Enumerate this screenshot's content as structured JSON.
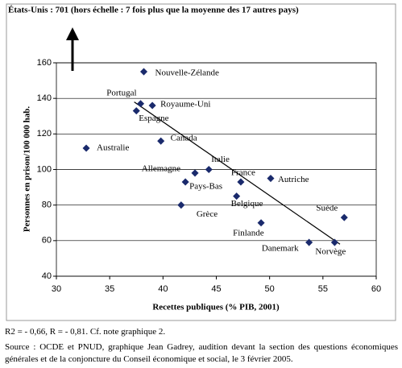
{
  "chart_data": {
    "type": "scatter",
    "title": "États-Unis : 701 (hors échelle : 7 fois plus que la moyenne des 17 autres pays)",
    "x_label": "Recettes publiques (% PIB, 2001)",
    "y_label": "Personnes en prison/100 000 hab.",
    "point_labels": [
      "Nouvelle-Zélande",
      "Portugal",
      "Royaume-Uni",
      "Espagne",
      "Canada",
      "Australie",
      "Italie",
      "Allemagne",
      "Pays-Bas",
      "France",
      "Autriche",
      "Belgique",
      "Grèce",
      "Finlande",
      "Suède",
      "Danemark",
      "Norvège"
    ],
    "x": [
      38.2,
      37.9,
      39.0,
      37.5,
      39.8,
      32.8,
      44.3,
      43.0,
      42.1,
      47.3,
      50.1,
      46.9,
      41.7,
      49.2,
      57.0,
      53.7,
      56.1
    ],
    "values": [
      155,
      137,
      136,
      133,
      116,
      112,
      100,
      98,
      93,
      93,
      95,
      85,
      80,
      70,
      73,
      59,
      59
    ],
    "color": "#1a2a6c",
    "trend_line": {
      "x": [
        37.3,
        56.6
      ],
      "y": [
        138,
        58
      ]
    },
    "xlim": [
      30,
      60
    ],
    "xticks": [
      30,
      35,
      40,
      45,
      50,
      55,
      60
    ],
    "ylim": [
      40,
      160
    ],
    "yticks": [
      40,
      60,
      80,
      100,
      120,
      140,
      160
    ],
    "grid": true
  },
  "notes": [
    "R2 = - 0,66, R = - 0,81. Cf. note graphique 2.",
    "Source : OCDE et PNUD, graphique Jean Gadrey, audition devant la section des questions économiques générales et de la conjoncture du Conseil économique et social, le 3 février 2005."
  ]
}
